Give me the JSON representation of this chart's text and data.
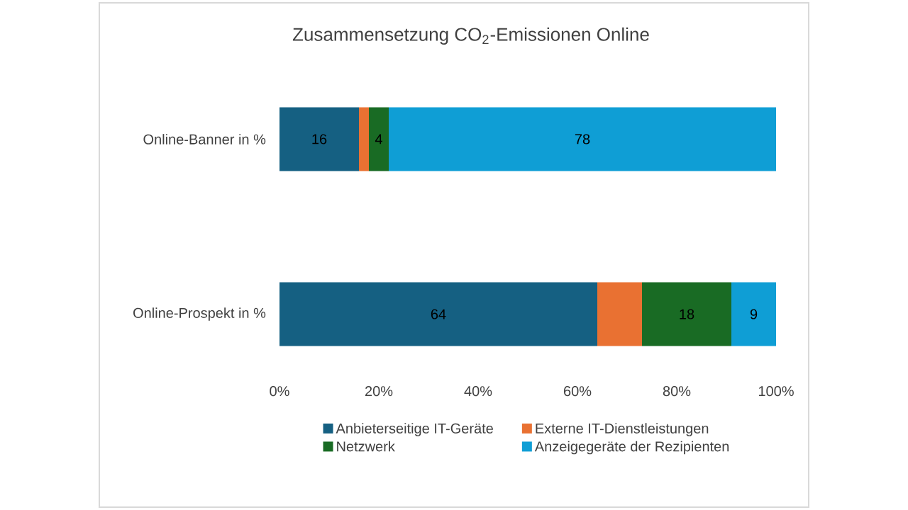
{
  "chart_data": {
    "type": "bar",
    "orientation": "horizontal",
    "stacked": true,
    "title": "Zusammensetzung CO$_{2}$-Emissionen Online",
    "categories": [
      "Online-Banner in %",
      "Online-Prospekt in %"
    ],
    "series": [
      {
        "name": "Anbieterseitige IT-Geräte",
        "color": "#156082",
        "values": [
          16,
          64
        ],
        "value_labels": [
          "16",
          "64"
        ]
      },
      {
        "name": "Externe IT-Dienstleistungen",
        "color": "#e97132",
        "values": [
          2,
          9
        ],
        "value_labels": [
          null,
          null
        ]
      },
      {
        "name": "Netzwerk",
        "color": "#196b24",
        "values": [
          4,
          18
        ],
        "value_labels": [
          "4",
          "18"
        ]
      },
      {
        "name": "Anzeigegeräte der Rezipienten",
        "color": "#0f9ed5",
        "values": [
          78,
          9
        ],
        "value_labels": [
          "78",
          "9"
        ]
      }
    ],
    "xlim": [
      0,
      100
    ],
    "xticks": [
      {
        "value": 0,
        "label": "0%"
      },
      {
        "value": 20,
        "label": "20%"
      },
      {
        "value": 40,
        "label": "40%"
      },
      {
        "value": 60,
        "label": "60%"
      },
      {
        "value": 80,
        "label": "80%"
      },
      {
        "value": 100,
        "label": "100%"
      }
    ],
    "legend": "bottom",
    "grid": false
  }
}
